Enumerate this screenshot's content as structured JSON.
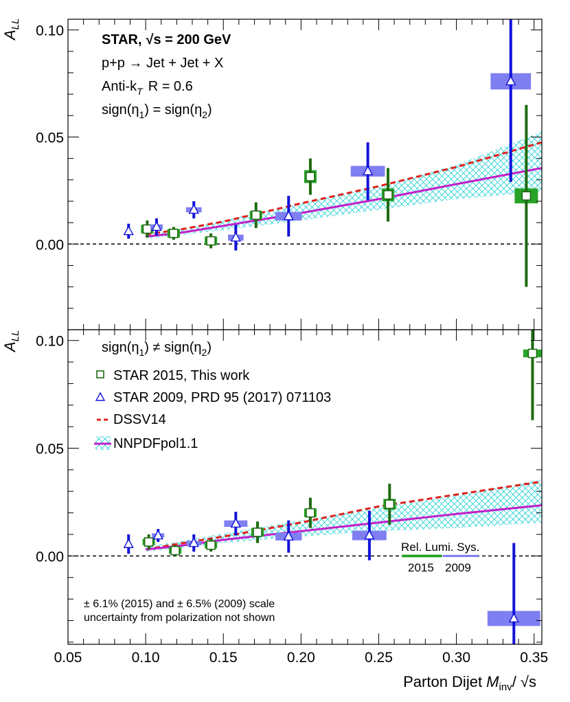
{
  "colors": {
    "star2015": "#1f6b12",
    "star2015_sys": "#27a327",
    "star2009": "#1212d9",
    "star2009_sys": "#7f7ff2",
    "dssv": "#e0201b",
    "nnpdf": "#c21fc9",
    "band": "#2ad0d6"
  },
  "chart_data": [
    {
      "type": "scatter",
      "panel": "top",
      "ylabel": "A_LL",
      "ylabel_main": "A",
      "ylabel_sub": "LL",
      "xlim": [
        0.05,
        0.355
      ],
      "ylim": [
        -0.04,
        0.105
      ],
      "yticks": [
        0.0,
        0.05,
        0.1
      ],
      "ytick_labels": [
        "0.00",
        "0.05",
        "0.10"
      ],
      "annotations": {
        "title_star": "STAR,",
        "title_sqrt": "√s = 200 GeV",
        "reaction": "p+p → Jet + Jet + X",
        "algorithm_a": "Anti-k",
        "algorithm_sub": "T",
        "algorithm_b": "R = 0.6",
        "topology_a": "sign(η",
        "topology_s1": "1",
        "topology_b": ") = sign(η",
        "topology_s2": "2",
        "topology_c": ")"
      },
      "series": [
        {
          "name": "STAR 2015, This work",
          "marker": "open-square",
          "points": [
            {
              "x": 0.101,
              "y": 0.007,
              "err": 0.004,
              "sys_w": 0.004,
              "sys_h": 0.002
            },
            {
              "x": 0.118,
              "y": 0.005,
              "err": 0.003,
              "sys_w": 0.004,
              "sys_h": 0.002
            },
            {
              "x": 0.142,
              "y": 0.0015,
              "err": 0.0035,
              "sys_w": 0.004,
              "sys_h": 0.002
            },
            {
              "x": 0.171,
              "y": 0.0135,
              "err": 0.006,
              "sys_w": 0.004,
              "sys_h": 0.002
            },
            {
              "x": 0.206,
              "y": 0.0315,
              "err": 0.0085,
              "sys_w": 0.004,
              "sys_h": 0.003
            },
            {
              "x": 0.256,
              "y": 0.023,
              "err": 0.0125,
              "sys_w": 0.004,
              "sys_h": 0.003
            },
            {
              "x": 0.345,
              "y": 0.0225,
              "err": 0.0425,
              "sys_w": 0.0075,
              "sys_h": 0.0035
            }
          ]
        },
        {
          "name": "STAR 2009, PRD 95 (2017) 071103",
          "marker": "open-triangle",
          "points": [
            {
              "x": 0.089,
              "y": 0.006,
              "err": 0.0035,
              "sys_w": 0.001,
              "sys_h": 0.001
            },
            {
              "x": 0.107,
              "y": 0.008,
              "err": 0.004,
              "sys_w": 0.004,
              "sys_h": 0.0012
            },
            {
              "x": 0.131,
              "y": 0.016,
              "err": 0.004,
              "sys_w": 0.005,
              "sys_h": 0.0012
            },
            {
              "x": 0.158,
              "y": 0.003,
              "err": 0.006,
              "sys_w": 0.005,
              "sys_h": 0.0014
            },
            {
              "x": 0.192,
              "y": 0.013,
              "err": 0.0095,
              "sys_w": 0.0085,
              "sys_h": 0.002
            },
            {
              "x": 0.243,
              "y": 0.034,
              "err": 0.0135,
              "sys_w": 0.011,
              "sys_h": 0.0025
            },
            {
              "x": 0.335,
              "y": 0.076,
              "err": 0.047,
              "sys_w": 0.013,
              "sys_h": 0.0038
            }
          ]
        },
        {
          "name": "DSSV14",
          "line": "dashed",
          "x": [
            0.1,
            0.12,
            0.15,
            0.2,
            0.25,
            0.3,
            0.355
          ],
          "y": [
            0.0045,
            0.0065,
            0.0105,
            0.019,
            0.027,
            0.036,
            0.0475
          ]
        },
        {
          "name": "NNPDFpol1.1",
          "line": "solid",
          "x": [
            0.1,
            0.12,
            0.15,
            0.2,
            0.25,
            0.3,
            0.355
          ],
          "y": [
            0.0035,
            0.005,
            0.0085,
            0.0145,
            0.021,
            0.028,
            0.0355
          ],
          "band_low": [
            0.0025,
            0.004,
            0.0065,
            0.011,
            0.016,
            0.021,
            0.0245
          ],
          "band_high": [
            0.0045,
            0.0065,
            0.011,
            0.019,
            0.027,
            0.037,
            0.0525
          ]
        }
      ]
    },
    {
      "type": "scatter",
      "panel": "bottom",
      "ylabel": "A_LL",
      "ylabel_main": "A",
      "ylabel_sub": "LL",
      "xlabel_prefix": "Parton Dijet ",
      "xlabel_var": "M",
      "xlabel_sub": "inv",
      "xlabel_suffix": "/ √s",
      "xlim": [
        0.05,
        0.355
      ],
      "ylim": [
        -0.041,
        0.105
      ],
      "yticks": [
        0.0,
        0.05,
        0.1
      ],
      "ytick_labels": [
        "0.00",
        "0.05",
        "0.10"
      ],
      "xticks": [
        0.05,
        0.1,
        0.15,
        0.2,
        0.25,
        0.3,
        0.35
      ],
      "xtick_labels": [
        "0.05",
        "0.10",
        "0.15",
        "0.20",
        "0.25",
        "0.30",
        "0.35"
      ],
      "annotations": {
        "topology_a": "sign(η",
        "topology_s1": "1",
        "topology_b": ") ≠ sign(η",
        "topology_s2": "2",
        "topology_c": ")",
        "lumi_title": "Rel. Lumi. Sys.",
        "lumi_2015": "2015",
        "lumi_2009": "2009",
        "lumi_2015_value": 0.0006,
        "lumi_2009_value": 0.0005,
        "scale_note_line1": "± 6.1% (2015) and ± 6.5% (2009) scale",
        "scale_note_line2": "uncertainty from polarization not shown"
      },
      "series": [
        {
          "name": "STAR 2015, This work",
          "marker": "open-square",
          "points": [
            {
              "x": 0.102,
              "y": 0.0065,
              "err": 0.0035,
              "sys_w": 0.004,
              "sys_h": 0.0015
            },
            {
              "x": 0.119,
              "y": 0.0025,
              "err": 0.0025,
              "sys_w": 0.004,
              "sys_h": 0.0015
            },
            {
              "x": 0.142,
              "y": 0.005,
              "err": 0.003,
              "sys_w": 0.004,
              "sys_h": 0.0015
            },
            {
              "x": 0.172,
              "y": 0.011,
              "err": 0.005,
              "sys_w": 0.004,
              "sys_h": 0.002
            },
            {
              "x": 0.206,
              "y": 0.02,
              "err": 0.007,
              "sys_w": 0.004,
              "sys_h": 0.002
            },
            {
              "x": 0.257,
              "y": 0.024,
              "err": 0.0095,
              "sys_w": 0.004,
              "sys_h": 0.0025
            },
            {
              "x": 0.349,
              "y": 0.094,
              "err": 0.031,
              "sys_w": 0.006,
              "sys_h": 0.0018
            }
          ]
        },
        {
          "name": "STAR 2009, PRD 95 (2017) 071103",
          "marker": "open-triangle",
          "points": [
            {
              "x": 0.089,
              "y": 0.0055,
              "err": 0.0045,
              "sys_w": 0.001,
              "sys_h": 0.001
            },
            {
              "x": 0.108,
              "y": 0.0095,
              "err": 0.003,
              "sys_w": 0.004,
              "sys_h": 0.001
            },
            {
              "x": 0.131,
              "y": 0.006,
              "err": 0.004,
              "sys_w": 0.005,
              "sys_h": 0.001
            },
            {
              "x": 0.158,
              "y": 0.015,
              "err": 0.0055,
              "sys_w": 0.0075,
              "sys_h": 0.0015
            },
            {
              "x": 0.192,
              "y": 0.009,
              "err": 0.0075,
              "sys_w": 0.0085,
              "sys_h": 0.0018
            },
            {
              "x": 0.244,
              "y": 0.0095,
              "err": 0.0115,
              "sys_w": 0.011,
              "sys_h": 0.0022
            },
            {
              "x": 0.337,
              "y": -0.029,
              "err": 0.035,
              "sys_w": 0.017,
              "sys_h": 0.0035
            }
          ]
        },
        {
          "name": "DSSV14",
          "line": "dashed",
          "x": [
            0.1,
            0.12,
            0.15,
            0.2,
            0.25,
            0.3,
            0.355
          ],
          "y": [
            0.003,
            0.0055,
            0.009,
            0.0155,
            0.023,
            0.0285,
            0.0345
          ]
        },
        {
          "name": "NNPDFpol1.1",
          "line": "solid",
          "x": [
            0.1,
            0.12,
            0.15,
            0.2,
            0.25,
            0.3,
            0.355
          ],
          "y": [
            0.003,
            0.0045,
            0.0075,
            0.0115,
            0.0155,
            0.0195,
            0.0235
          ],
          "band_low": [
            0.002,
            0.0035,
            0.006,
            0.009,
            0.0115,
            0.013,
            0.0155
          ],
          "band_high": [
            0.0045,
            0.0065,
            0.0105,
            0.0165,
            0.0225,
            0.028,
            0.0355
          ]
        }
      ],
      "legend": {
        "placement": "top-left",
        "entries": [
          "STAR 2015, This work",
          "STAR 2009, PRD 95 (2017) 071103",
          "DSSV14",
          "NNPDFpol1.1"
        ]
      }
    }
  ]
}
